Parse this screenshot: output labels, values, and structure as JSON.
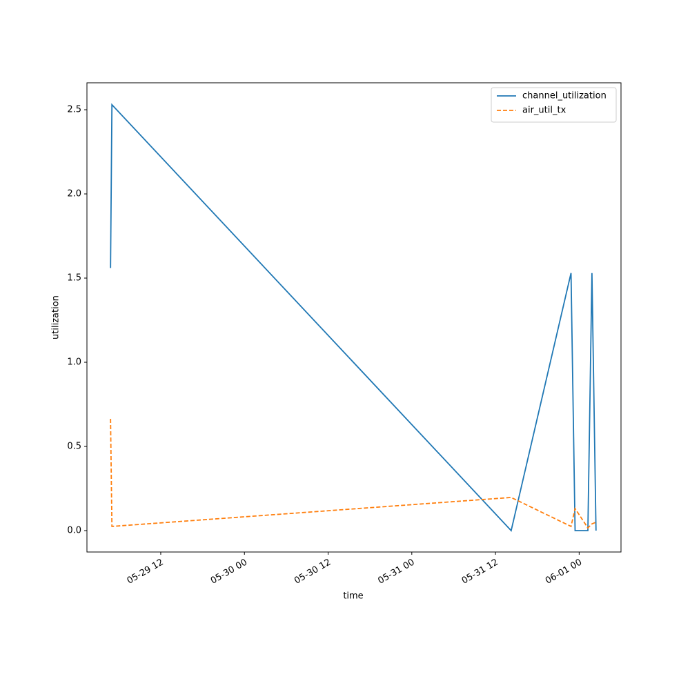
{
  "chart_data": {
    "type": "line",
    "x_label": "time",
    "y_label": "utilization",
    "x": [
      "05-29 04:48",
      "05-29 05:00",
      "05-31 14:15",
      "05-31 22:50",
      "05-31 23:25",
      "06-01 01:15",
      "06-01 01:50",
      "06-01 02:25"
    ],
    "series": [
      {
        "name": "channel_utilization",
        "color": "#1f77b4",
        "dash": "solid",
        "values": [
          1.56,
          2.53,
          0.0,
          1.53,
          0.0,
          0.0,
          1.53,
          0.0
        ]
      },
      {
        "name": "air_util_tx",
        "color": "#ff7f0e",
        "dash": "dashed",
        "values": [
          0.664,
          0.025,
          0.197,
          0.025,
          0.131,
          0.016,
          0.04,
          0.05
        ]
      }
    ],
    "xlim": [
      "05-29 01:25",
      "06-01 06:00"
    ],
    "xticks": [
      {
        "value": "05-29 12:00",
        "label": "05-29 12"
      },
      {
        "value": "05-30 00:00",
        "label": "05-30 00"
      },
      {
        "value": "05-30 12:00",
        "label": "05-30 12"
      },
      {
        "value": "05-31 00:00",
        "label": "05-31 00"
      },
      {
        "value": "05-31 12:00",
        "label": "05-31 12"
      },
      {
        "value": "06-01 00:00",
        "label": "06-01 00"
      }
    ],
    "ylim": [
      -0.127,
      2.66
    ],
    "yticks": [
      {
        "value": 0,
        "label": "0.0"
      },
      {
        "value": 0.5,
        "label": "0.5"
      },
      {
        "value": 1,
        "label": "1.0"
      },
      {
        "value": 1.5,
        "label": "1.5"
      },
      {
        "value": 2,
        "label": "2.0"
      },
      {
        "value": 2.5,
        "label": "2.5"
      }
    ],
    "grid": false,
    "legend": "upper right"
  }
}
